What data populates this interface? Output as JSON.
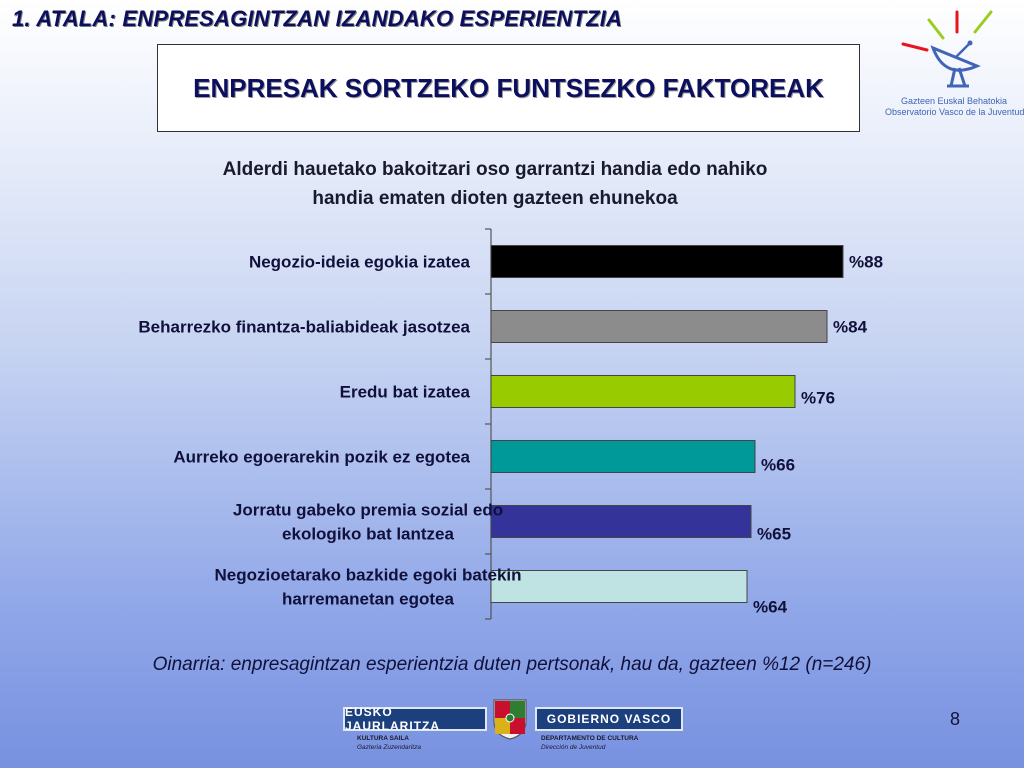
{
  "header": {
    "section_title": "1. ATALA: ENPRESAGINTZAN IZANDAKO ESPERIENTZIA",
    "slide_title": "ENPRESAK SORTZEKO FUNTSEZKO FAKTOREAK"
  },
  "observatory_logo": {
    "line1": "Gazteen Euskal Behatokia",
    "line2": "Observatorio Vasco de la Juventud"
  },
  "chart_data": {
    "type": "bar",
    "orientation": "horizontal",
    "title_line1": "Alderdi hauetako bakoitzari oso garrantzi handia edo nahiko",
    "title_line2": "handia ematen dioten gazteen ehunekoa",
    "categories": [
      [
        "Negozio-ideia egokia izatea"
      ],
      [
        "Beharrezko finantza-baliabideak jasotzea"
      ],
      [
        "Eredu bat izatea"
      ],
      [
        "Aurreko egoerarekin pozik ez egotea"
      ],
      [
        "Jorratu gabeko premia sozial edo",
        "ekologiko bat lantzea"
      ],
      [
        "Negozioetarako bazkide egoki batekin",
        "harremanetan egotea"
      ]
    ],
    "values": [
      88,
      84,
      76,
      66,
      65,
      64
    ],
    "value_labels": [
      "%88",
      "%84",
      "%76",
      "%66",
      "%65",
      "%64"
    ],
    "bar_colors": [
      "#000000",
      "#8c8c8c",
      "#99cc00",
      "#009999",
      "#333399",
      "#bfe3e3"
    ],
    "xlim": [
      0,
      100
    ],
    "grid": false,
    "legend": "none"
  },
  "footnote": "Oinarria: enpresagintzan esperientzia duten pertsonak, hau da, gazteen %12 (n=246)",
  "page_number": "8",
  "gov_logo": {
    "left_name": "EUSKO JAURLARITZA",
    "right_name": "GOBIERNO VASCO",
    "left_dept": "KULTURA SAILA",
    "left_sub": "Gazteria Zuzendaritza",
    "right_dept": "DEPARTAMENTO DE CULTURA",
    "right_sub": "Dirección de Juventud"
  }
}
